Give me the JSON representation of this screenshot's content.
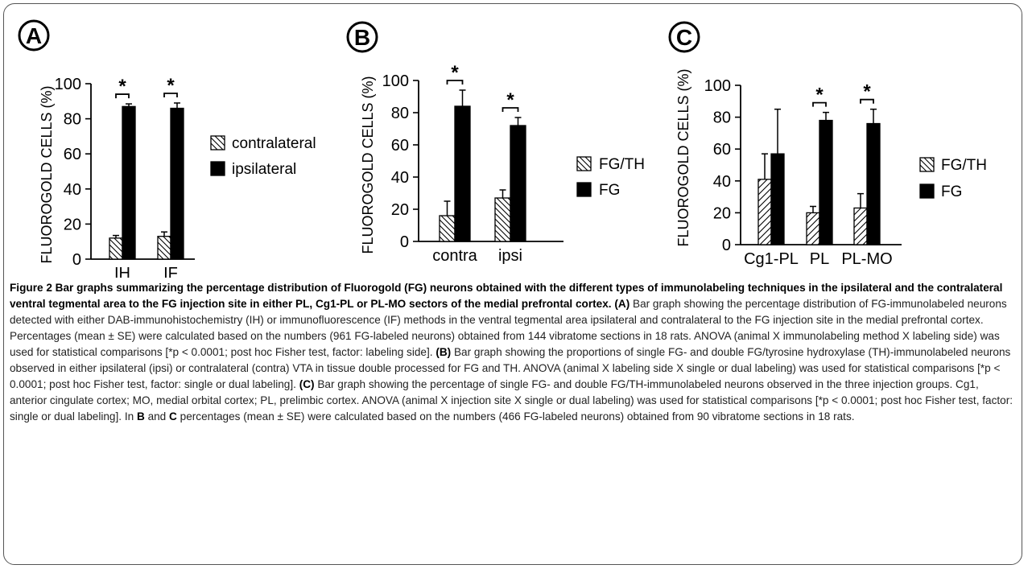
{
  "panels": [
    {
      "letter": "A",
      "ylabel": "FLUOROGOLD CELLS (%)",
      "yticks": [
        "0",
        "20",
        "40",
        "60",
        "80",
        "100"
      ],
      "legend": [
        "contralateral",
        "ipsilateral"
      ],
      "sig_marker": "*"
    },
    {
      "letter": "B",
      "ylabel": "FLUOROGOLD CELLS (%)",
      "yticks": [
        "0",
        "20",
        "40",
        "60",
        "80",
        "100"
      ],
      "legend": [
        "FG/TH",
        "FG"
      ],
      "sig_marker": "*"
    },
    {
      "letter": "C",
      "ylabel": "FLUOROGOLD CELLS (%)",
      "yticks": [
        "0",
        "20",
        "40",
        "60",
        "80",
        "100"
      ],
      "legend": [
        "FG/TH",
        "FG"
      ],
      "sig_marker": "*"
    }
  ],
  "chart_data": [
    {
      "type": "bar",
      "categories": [
        "IH",
        "IF"
      ],
      "series": [
        {
          "name": "contralateral",
          "values": [
            12,
            13
          ],
          "errors": [
            1.5,
            2.5
          ]
        },
        {
          "name": "ipsilateral",
          "values": [
            87,
            86
          ],
          "errors": [
            1.5,
            3
          ]
        }
      ],
      "significant": [
        true,
        true
      ],
      "ylabel": "FLUOROGOLD CELLS (%)",
      "ylim": [
        0,
        100
      ],
      "legend_position": "right"
    },
    {
      "type": "bar",
      "categories": [
        "contra",
        "ipsi"
      ],
      "series": [
        {
          "name": "FG/TH",
          "values": [
            16,
            27
          ],
          "errors": [
            9,
            5
          ]
        },
        {
          "name": "FG",
          "values": [
            84,
            72
          ],
          "errors": [
            10,
            5
          ]
        }
      ],
      "significant": [
        true,
        true
      ],
      "ylabel": "FLUOROGOLD CELLS (%)",
      "ylim": [
        0,
        100
      ],
      "legend_position": "right"
    },
    {
      "type": "bar",
      "categories": [
        "Cg1-PL",
        "PL",
        "PL-MO"
      ],
      "series": [
        {
          "name": "FG/TH",
          "values": [
            41,
            20,
            23
          ],
          "errors": [
            16,
            4,
            9
          ]
        },
        {
          "name": "FG",
          "values": [
            57,
            78,
            76
          ],
          "errors": [
            28,
            5,
            9
          ]
        }
      ],
      "significant": [
        false,
        true,
        true
      ],
      "ylabel": "FLUOROGOLD CELLS (%)",
      "ylim": [
        0,
        100
      ],
      "legend_position": "right"
    }
  ],
  "caption": {
    "title": "Figure 2 Bar graphs summarizing the percentage distribution of Fluorogold (FG) neurons obtained with the different types of immunolabeling techniques in the ipsilateral and the contralateral ventral tegmental area to the FG injection site in either PL, Cg1-PL or PL-MO sectors of the medial prefrontal cortex.",
    "a_label": "(A)",
    "a_text": "Bar graph showing the percentage distribution of FG-immunolabeled neurons detected with either DAB-immunohistochemistry (IH) or immunofluorescence (IF) methods in the ventral tegmental area ipsilateral and contralateral to the FG injection site in the medial prefrontal cortex. Percentages (mean ± SE) were calculated based on the numbers (961 FG-labeled neurons) obtained from 144 vibratome sections in 18 rats. ANOVA (animal X immunolabeling method X labeling side) was used for statistical comparisons [*p < 0.0001; post hoc Fisher test, factor: labeling side].",
    "b_label": "(B)",
    "b_text": "Bar graph showing the proportions of single FG- and double FG/tyrosine hydroxylase (TH)-immunolabeled neurons observed in either ipsilateral (ipsi) or contralateral (contra) VTA in tissue double processed for FG and TH. ANOVA (animal X labeling side X single or dual labeling) was used for statistical comparisons [*p < 0.0001; post hoc Fisher test, factor: single or dual labeling].",
    "c_label": "(C)",
    "c_text": "Bar graph showing the percentage of single FG- and double FG/TH-immunolabeled neurons observed in the three injection groups. Cg1, anterior cingulate cortex; MO, medial orbital cortex; PL, prelimbic cortex. ANOVA (animal X injection site X single or dual labeling) was used for statistical comparisons [*p < 0.0001; post hoc Fisher test, factor: single or dual labeling]. In",
    "in_b": "B",
    "and_word": "and",
    "in_c": "C",
    "tail_text": "percentages (mean ± SE) were calculated based on the numbers (466 FG-labeled neurons) obtained from 90 vibratome sections in 18 rats."
  }
}
